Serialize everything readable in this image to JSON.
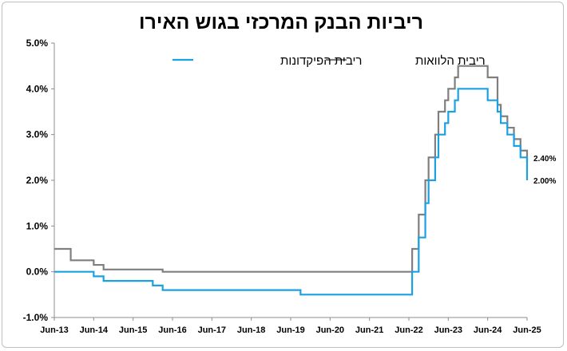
{
  "chart_data": {
    "type": "line",
    "title": "ריביות הבנק המרכזי בגוש האירו",
    "ylim": [
      -1.0,
      5.0
    ],
    "yticks": [
      "-1.0%",
      "0.0%",
      "1.0%",
      "2.0%",
      "3.0%",
      "4.0%",
      "5.0%"
    ],
    "yticks_values": [
      -1,
      0,
      1,
      2,
      3,
      4,
      5
    ],
    "xlim": [
      "2013-06",
      "2025-06"
    ],
    "xticks": [
      "Jun-13",
      "Jun-14",
      "Jun-15",
      "Jun-16",
      "Jun-17",
      "Jun-18",
      "Jun-19",
      "Jun-20",
      "Jun-21",
      "Jun-22",
      "Jun-23",
      "Jun-24",
      "Jun-25"
    ],
    "grid": false,
    "legend_position": "top",
    "series": [
      {
        "name": "ריבית הלוואות",
        "color": "#7f7f7f",
        "end_label": "2.40%",
        "points": [
          [
            "2013-06",
            0.5
          ],
          [
            "2013-11",
            0.5
          ],
          [
            "2013-11",
            0.25
          ],
          [
            "2014-06",
            0.25
          ],
          [
            "2014-06",
            0.15
          ],
          [
            "2014-09",
            0.15
          ],
          [
            "2014-09",
            0.05
          ],
          [
            "2016-03",
            0.05
          ],
          [
            "2016-03",
            0.0
          ],
          [
            "2022-07",
            0.0
          ],
          [
            "2022-07",
            0.5
          ],
          [
            "2022-09",
            0.5
          ],
          [
            "2022-09",
            1.25
          ],
          [
            "2022-11",
            1.25
          ],
          [
            "2022-11",
            2.0
          ],
          [
            "2022-12",
            2.0
          ],
          [
            "2022-12",
            2.5
          ],
          [
            "2023-02",
            2.5
          ],
          [
            "2023-02",
            3.0
          ],
          [
            "2023-03",
            3.0
          ],
          [
            "2023-03",
            3.5
          ],
          [
            "2023-05",
            3.5
          ],
          [
            "2023-05",
            3.75
          ],
          [
            "2023-06",
            3.75
          ],
          [
            "2023-06",
            4.0
          ],
          [
            "2023-08",
            4.0
          ],
          [
            "2023-08",
            4.25
          ],
          [
            "2023-09",
            4.25
          ],
          [
            "2023-09",
            4.5
          ],
          [
            "2024-06",
            4.5
          ],
          [
            "2024-06",
            4.25
          ],
          [
            "2024-09",
            4.25
          ],
          [
            "2024-09",
            3.65
          ],
          [
            "2024-10",
            3.65
          ],
          [
            "2024-10",
            3.4
          ],
          [
            "2024-12",
            3.4
          ],
          [
            "2024-12",
            3.15
          ],
          [
            "2025-02",
            3.15
          ],
          [
            "2025-02",
            2.9
          ],
          [
            "2025-04",
            2.9
          ],
          [
            "2025-04",
            2.65
          ],
          [
            "2025-06",
            2.65
          ],
          [
            "2025-06",
            2.4
          ]
        ]
      },
      {
        "name": "ריבית הפיקדונות",
        "color": "#1ba1e2",
        "end_label": "2.00%",
        "points": [
          [
            "2013-06",
            0.0
          ],
          [
            "2014-06",
            0.0
          ],
          [
            "2014-06",
            -0.1
          ],
          [
            "2014-09",
            -0.1
          ],
          [
            "2014-09",
            -0.2
          ],
          [
            "2015-12",
            -0.2
          ],
          [
            "2015-12",
            -0.3
          ],
          [
            "2016-03",
            -0.3
          ],
          [
            "2016-03",
            -0.4
          ],
          [
            "2019-09",
            -0.4
          ],
          [
            "2019-09",
            -0.5
          ],
          [
            "2022-07",
            -0.5
          ],
          [
            "2022-07",
            0.0
          ],
          [
            "2022-09",
            0.0
          ],
          [
            "2022-09",
            0.75
          ],
          [
            "2022-11",
            0.75
          ],
          [
            "2022-11",
            1.5
          ],
          [
            "2022-12",
            1.5
          ],
          [
            "2022-12",
            2.0
          ],
          [
            "2023-02",
            2.0
          ],
          [
            "2023-02",
            2.5
          ],
          [
            "2023-03",
            2.5
          ],
          [
            "2023-03",
            3.0
          ],
          [
            "2023-05",
            3.0
          ],
          [
            "2023-05",
            3.25
          ],
          [
            "2023-06",
            3.25
          ],
          [
            "2023-06",
            3.5
          ],
          [
            "2023-08",
            3.5
          ],
          [
            "2023-08",
            3.75
          ],
          [
            "2023-09",
            3.75
          ],
          [
            "2023-09",
            4.0
          ],
          [
            "2024-06",
            4.0
          ],
          [
            "2024-06",
            3.75
          ],
          [
            "2024-09",
            3.75
          ],
          [
            "2024-09",
            3.5
          ],
          [
            "2024-10",
            3.5
          ],
          [
            "2024-10",
            3.25
          ],
          [
            "2024-12",
            3.25
          ],
          [
            "2024-12",
            3.0
          ],
          [
            "2025-02",
            3.0
          ],
          [
            "2025-02",
            2.75
          ],
          [
            "2025-04",
            2.75
          ],
          [
            "2025-04",
            2.5
          ],
          [
            "2025-06",
            2.5
          ],
          [
            "2025-06",
            2.0
          ]
        ]
      }
    ]
  }
}
